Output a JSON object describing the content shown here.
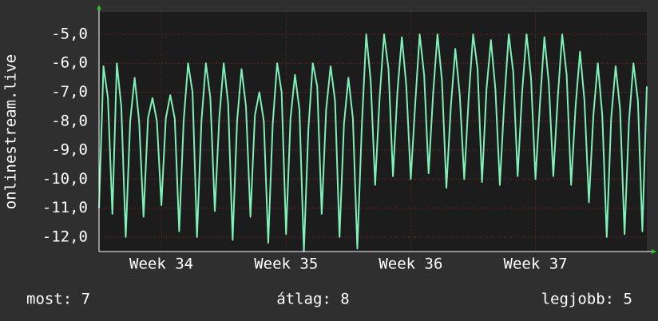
{
  "chart_data": {
    "type": "line",
    "y_label": "onlinestream.live",
    "series": [
      {
        "color": "#7ff0b8",
        "values": [
          -11.0,
          -6.1,
          -7.2,
          -11.2,
          -6.0,
          -7.5,
          -12.0,
          -8.0,
          -6.5,
          -8.0,
          -11.3,
          -7.9,
          -7.2,
          -8.0,
          -10.9,
          -7.9,
          -7.1,
          -7.9,
          -11.8,
          -8.0,
          -6.0,
          -7.0,
          -12.0,
          -8.0,
          -6.0,
          -7.2,
          -11.1,
          -7.9,
          -6.0,
          -7.4,
          -12.1,
          -8.0,
          -6.2,
          -7.5,
          -11.3,
          -7.8,
          -7.0,
          -8.0,
          -12.2,
          -8.1,
          -6.0,
          -7.0,
          -11.9,
          -7.9,
          -6.4,
          -7.6,
          -12.5,
          -8.3,
          -6.0,
          -6.8,
          -11.2,
          -7.6,
          -6.1,
          -7.3,
          -12.0,
          -8.1,
          -6.5,
          -7.9,
          -12.4,
          -8.2,
          -5.0,
          -6.6,
          -10.2,
          -7.2,
          -5.0,
          -6.2,
          -9.9,
          -7.0,
          -5.1,
          -6.8,
          -10.0,
          -7.4,
          -5.0,
          -6.4,
          -9.8,
          -7.1,
          -5.0,
          -6.6,
          -10.3,
          -7.5,
          -5.5,
          -7.1,
          -10.0,
          -7.2,
          -5.0,
          -6.2,
          -10.1,
          -6.9,
          -5.2,
          -6.9,
          -10.2,
          -7.3,
          -5.0,
          -6.3,
          -9.9,
          -7.0,
          -5.0,
          -6.5,
          -10.0,
          -7.4,
          -5.1,
          -6.7,
          -9.9,
          -7.2,
          -5.0,
          -6.4,
          -10.2,
          -7.5,
          -5.6,
          -7.3,
          -10.8,
          -7.8,
          -6.0,
          -7.8,
          -12.0,
          -7.9,
          -6.1,
          -7.6,
          -11.9,
          -8.0,
          -6.0,
          -7.3,
          -11.8,
          -6.8
        ]
      }
    ],
    "xlim": [
      0,
      123
    ],
    "xticks": [
      {
        "value": 14,
        "label": "Week 34"
      },
      {
        "value": 42,
        "label": "Week 35"
      },
      {
        "value": 70,
        "label": "Week 36"
      },
      {
        "value": 98,
        "label": "Week 37"
      }
    ],
    "ylim": [
      -12.5,
      -4.23
    ],
    "yticks": [
      {
        "value": -12,
        "label": "-12,0"
      },
      {
        "value": -11,
        "label": "-11,0"
      },
      {
        "value": -10,
        "label": "-10,0"
      },
      {
        "value": -9,
        "label": "-9,0"
      },
      {
        "value": -8,
        "label": "-8,0"
      },
      {
        "value": -7,
        "label": "-7,0"
      },
      {
        "value": -6,
        "label": "-6,0"
      },
      {
        "value": -5,
        "label": "-5,0"
      }
    ],
    "grid": true,
    "footer": {
      "current": "most: 7",
      "average": "átlag: 8",
      "best": "legjobb: 5"
    }
  }
}
